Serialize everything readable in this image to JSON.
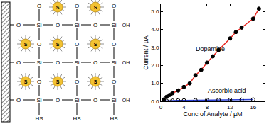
{
  "diagram": {
    "node_label": "Si",
    "bridge_label": "O",
    "terminal_labels": [
      "OH",
      "HS"
    ],
    "particle_label": "S"
  },
  "chart_data": {
    "type": "scatter",
    "x_label": "Conc of Analyte / µM",
    "y_label": "Current / µA",
    "xlim": [
      0,
      18
    ],
    "xticks": [
      0,
      4,
      8,
      12,
      16
    ],
    "ylim": [
      0,
      5.4
    ],
    "yticks": [
      {
        "value": 0,
        "label": "0.0"
      },
      {
        "value": 1,
        "label": "1.0"
      },
      {
        "value": 2,
        "label": "2.0"
      },
      {
        "value": 3,
        "label": "3.0"
      },
      {
        "value": 4,
        "label": "4.0"
      },
      {
        "value": 5,
        "label": "5.0"
      }
    ],
    "grid": false,
    "annotations": [
      {
        "text": "Dopamine",
        "x": 8.6,
        "y": 2.9
      },
      {
        "text": "Ascorbic acid",
        "x": 11.5,
        "y": 0.6
      }
    ],
    "series": [
      {
        "name": "Dopamine",
        "color": "#e8251f",
        "marker": "filled",
        "line_style": "solid",
        "x": [
          0.5,
          1,
          1.5,
          2,
          3,
          4,
          5,
          6,
          7,
          8,
          9,
          10,
          12,
          13,
          14,
          16,
          17
        ],
        "values": [
          0.1,
          0.25,
          0.35,
          0.45,
          0.6,
          0.8,
          1.0,
          1.45,
          1.75,
          2.15,
          2.5,
          2.85,
          3.5,
          3.85,
          4.1,
          4.6,
          5.15
        ]
      },
      {
        "name": "Ascorbic acid",
        "color": "#2a3fd6",
        "marker": "open",
        "line_style": "solid",
        "x": [
          0.5,
          1,
          2,
          3,
          4,
          6,
          8,
          10,
          12,
          14,
          16
        ],
        "values": [
          0.02,
          0.03,
          0.04,
          0.05,
          0.05,
          0.06,
          0.07,
          0.08,
          0.08,
          0.09,
          0.1
        ]
      }
    ]
  }
}
